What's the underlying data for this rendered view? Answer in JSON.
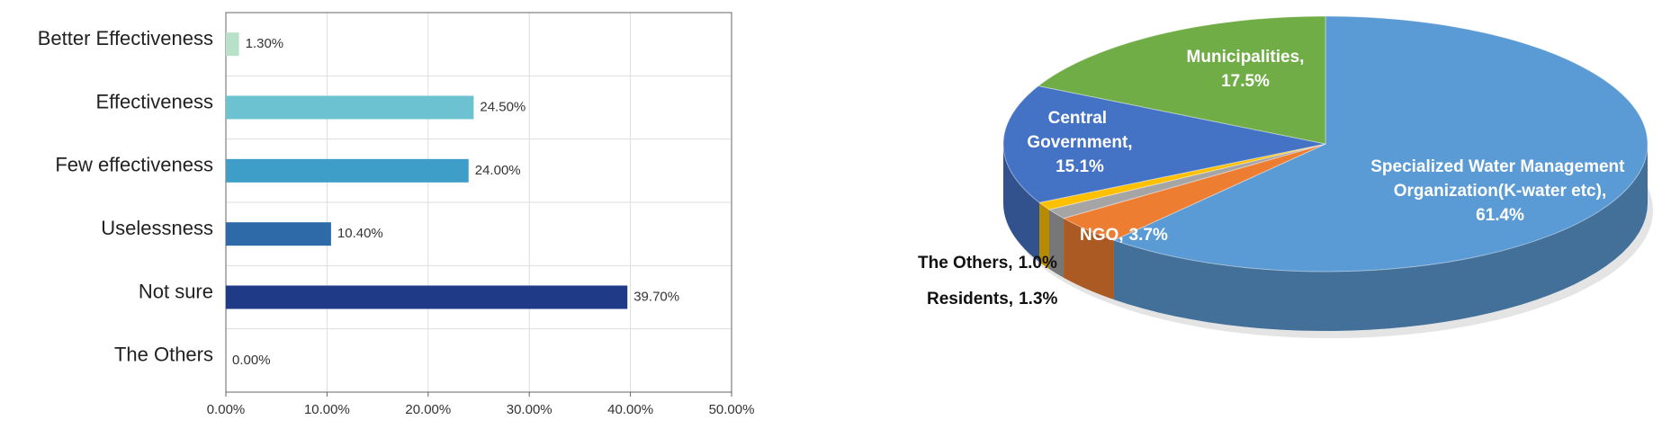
{
  "chart_data": [
    {
      "type": "bar",
      "orientation": "horizontal",
      "categories": [
        "Better Effectiveness",
        "Effectiveness",
        "Few effectiveness",
        "Uselessness",
        "Not sure",
        "The Others"
      ],
      "values": [
        1.3,
        24.5,
        24.0,
        10.4,
        39.7,
        0.0
      ],
      "value_labels": [
        "1.30%",
        "24.50%",
        "24.00%",
        "10.40%",
        "39.70%",
        "0.00%"
      ],
      "colors": [
        "#b9e0c8",
        "#6cc2d0",
        "#3e9ec8",
        "#2f6aa8",
        "#1f3b88",
        "#1f3b88"
      ],
      "xlim": [
        0,
        50
      ],
      "xticks": [
        {
          "value": 0,
          "label": "0.00%"
        },
        {
          "value": 10,
          "label": "10.00%"
        },
        {
          "value": 20,
          "label": "20.00%"
        },
        {
          "value": 30,
          "label": "30.00%"
        },
        {
          "value": 40,
          "label": "40.00%"
        },
        {
          "value": 50,
          "label": "50.00%"
        }
      ],
      "grid": true
    },
    {
      "type": "pie",
      "style": "3d",
      "categories": [
        "Specialized Water Management Organization(K-water etc),",
        "NGO,",
        "Residents,",
        "The Others,",
        "Central Government,",
        "Municipalities,"
      ],
      "values": [
        61.4,
        3.7,
        1.3,
        1.0,
        15.1,
        17.5
      ],
      "value_labels": [
        "61.4%",
        "3.7%",
        "1.3%",
        "1.0%",
        "15.1%",
        "17.5%"
      ],
      "colors": [
        "#5b9bd5",
        "#ed7d31",
        "#a5a5a5",
        "#ffc000",
        "#4472c4",
        "#70ad47"
      ]
    }
  ]
}
